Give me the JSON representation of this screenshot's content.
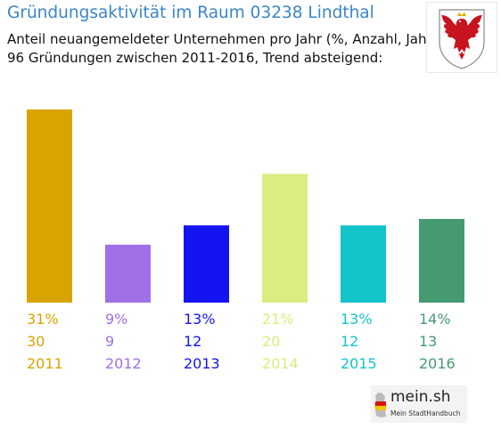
{
  "header": {
    "title": "Gründungsaktivität im Raum 03238 Lindthal",
    "subtitle_line1": "Anteil neuangemeldeter Unternehmen pro Jahr (%, Anzahl, Jahr)",
    "subtitle_line2": "96 Gründungen zwischen 2011-2016, Trend absteigend:"
  },
  "crest": {
    "icon": "red-eagle-coat-of-arms-icon"
  },
  "brand": {
    "name": "mein.sh",
    "tagline": "Mein StadtHandbuch",
    "icon": "germany-map-icon"
  },
  "chart_data": {
    "type": "bar",
    "categories": [
      "2011",
      "2012",
      "2013",
      "2014",
      "2015",
      "2016"
    ],
    "values": [
      30,
      9,
      12,
      20,
      12,
      13
    ],
    "percent_labels": [
      "31%",
      "9%",
      "13%",
      "21%",
      "13%",
      "14%"
    ],
    "colors": [
      "#d9a300",
      "#a070e6",
      "#1414f0",
      "#dcec80",
      "#12c4c8",
      "#459a72"
    ],
    "ylim": [
      0,
      30
    ],
    "grid": false,
    "legend": "none"
  }
}
